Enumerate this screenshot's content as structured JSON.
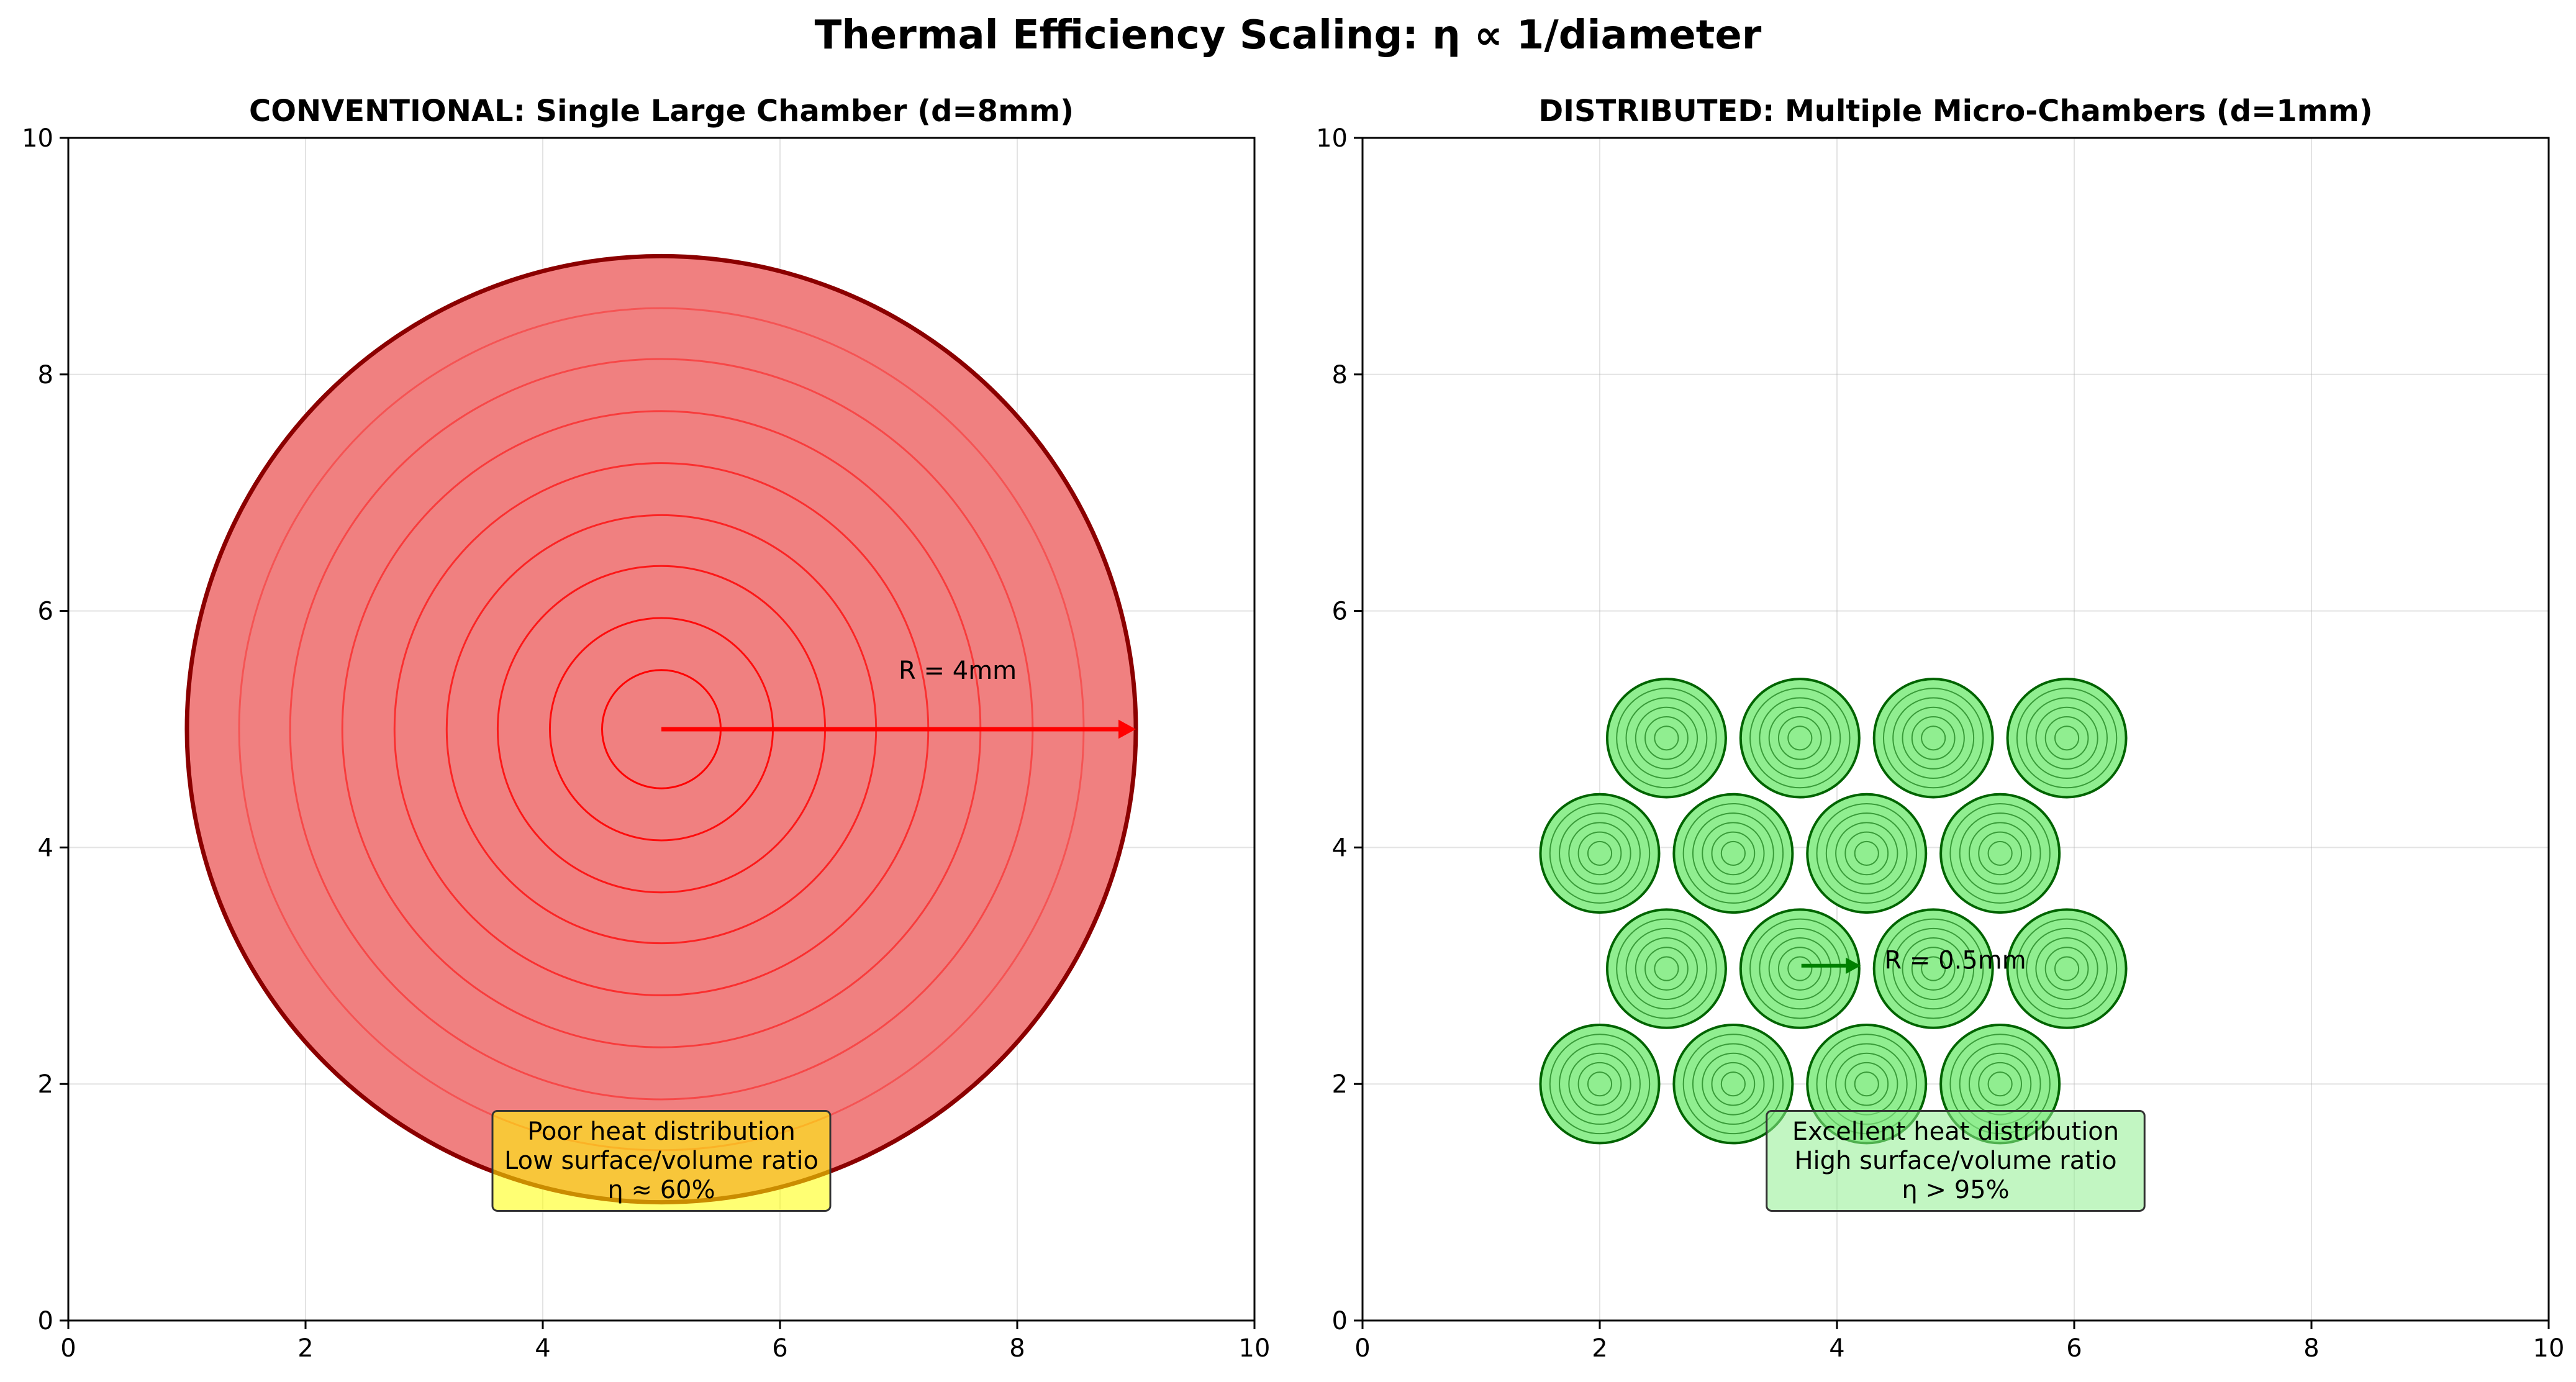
{
  "suptitle": "Thermal Efficiency Scaling: η ∝ 1/diameter",
  "panels": [
    {
      "title": "CONVENTIONAL: Single Large Chamber (d=8mm)",
      "xticks": [
        "0",
        "2",
        "4",
        "6",
        "8",
        "10"
      ],
      "yticks": [
        "0",
        "2",
        "4",
        "6",
        "8",
        "10"
      ]
    },
    {
      "title": "DISTRIBUTED: Multiple Micro-Chambers (d=1mm)",
      "xticks": [
        "0",
        "2",
        "4",
        "6",
        "8",
        "10"
      ],
      "yticks": [
        "0",
        "2",
        "4",
        "6",
        "8",
        "10"
      ]
    }
  ],
  "chart_data": [
    {
      "type": "scatter",
      "title": "CONVENTIONAL: Single Large Chamber (d=8mm)",
      "xlim": [
        0,
        10
      ],
      "ylim": [
        0,
        10
      ],
      "grid": true,
      "chamber": {
        "center": [
          5,
          5
        ],
        "radius": 4,
        "fill": "#f08080",
        "edge": "#8b0000",
        "contour_radii": [
          0.5,
          0.94,
          1.38,
          1.81,
          2.25,
          2.69,
          3.13,
          3.56
        ],
        "contour_color": "#ff0000"
      },
      "arrow": {
        "from": [
          5,
          5
        ],
        "to": [
          9,
          5
        ],
        "color": "#ff0000"
      },
      "arrow_label": {
        "text": "R = 4mm",
        "at": [
          7,
          5.5
        ]
      },
      "note": {
        "lines": [
          "Poor heat distribution",
          "Low surface/volume ratio",
          "η ≈ 60%"
        ],
        "center": [
          5,
          1.35
        ],
        "fill": "#ffff00"
      }
    },
    {
      "type": "scatter",
      "title": "DISTRIBUTED: Multiple Micro-Chambers (d=1mm)",
      "xlim": [
        0,
        10
      ],
      "ylim": [
        0,
        10
      ],
      "grid": true,
      "chamber_radius": 0.5,
      "chamber_fill": "#90ee90",
      "chamber_edge": "#006400",
      "chamber_centers": [
        [
          2.0,
          2.0
        ],
        [
          3.125,
          2.0
        ],
        [
          4.25,
          2.0
        ],
        [
          5.375,
          2.0
        ],
        [
          2.5625,
          2.975
        ],
        [
          3.6875,
          2.975
        ],
        [
          4.8125,
          2.975
        ],
        [
          5.9375,
          2.975
        ],
        [
          2.0,
          3.95
        ],
        [
          3.125,
          3.95
        ],
        [
          4.25,
          3.95
        ],
        [
          5.375,
          3.95
        ],
        [
          2.5625,
          4.925
        ],
        [
          3.6875,
          4.925
        ],
        [
          4.8125,
          4.925
        ],
        [
          5.9375,
          4.925
        ]
      ],
      "contour_radii": [
        0.1,
        0.18,
        0.26,
        0.34,
        0.42
      ],
      "arrow": {
        "from": [
          3.7,
          3.0
        ],
        "to": [
          4.2,
          3.0
        ],
        "color": "#008000"
      },
      "arrow_label": {
        "text": "R = 0.5mm",
        "at": [
          4.4,
          3.05
        ]
      },
      "note": {
        "lines": [
          "Excellent heat distribution",
          "High surface/volume ratio",
          "η > 95%"
        ],
        "center": [
          5,
          1.35
        ],
        "fill": "#90ee90"
      }
    }
  ]
}
